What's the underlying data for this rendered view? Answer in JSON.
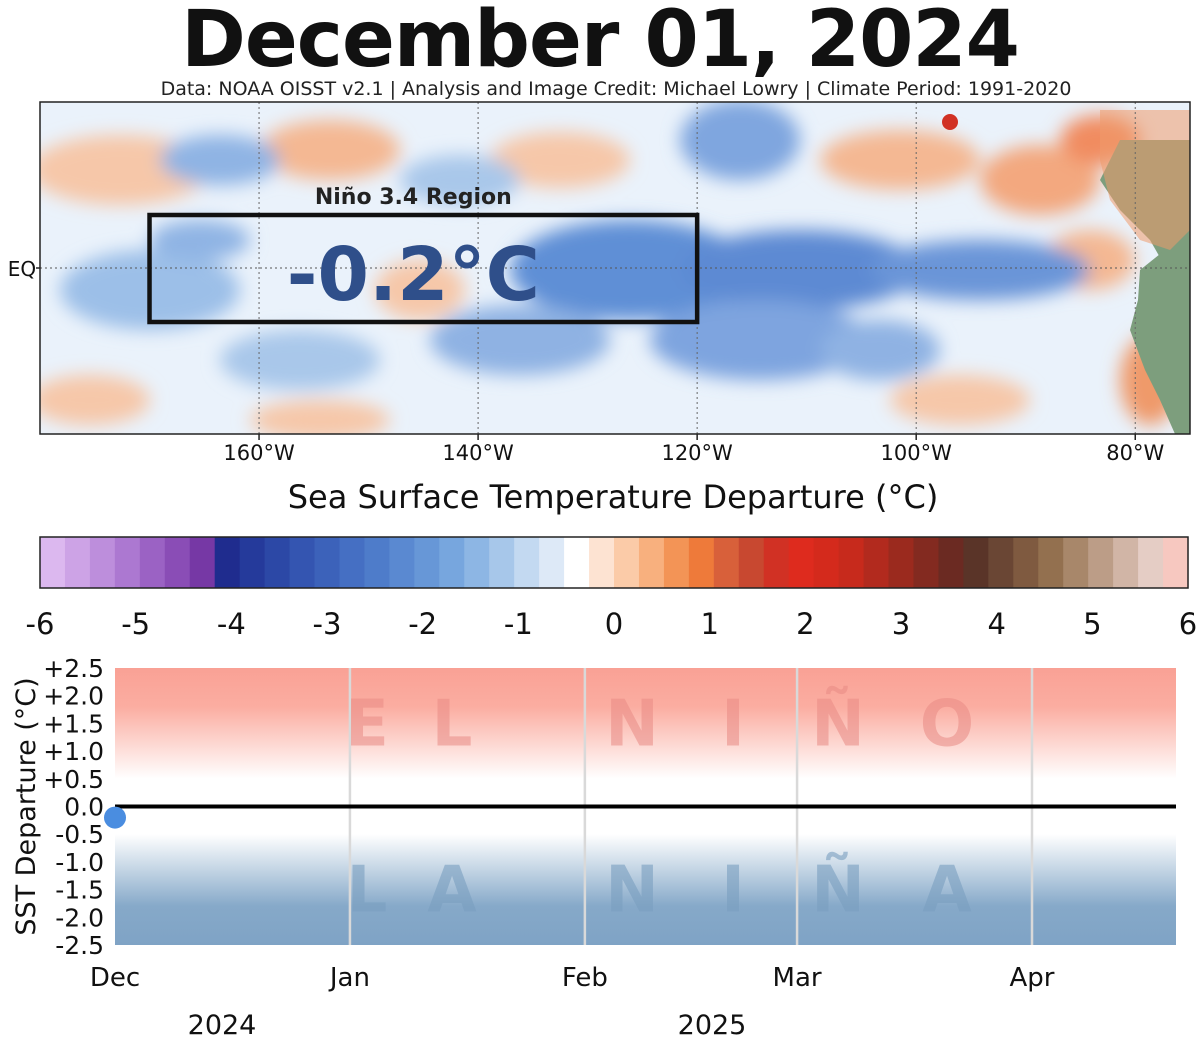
{
  "title": "December 01, 2024",
  "credit": "Data: NOAA OISST v2.1 | Analysis and Image Credit: Michael Lowry | Climate Period: 1991-2020",
  "map": {
    "equator_label": "EQ",
    "lon_labels": [
      "160°W",
      "140°W",
      "120°W",
      "100°W",
      "80°W"
    ],
    "lon_values": [
      -160,
      -140,
      -120,
      -100,
      -80
    ],
    "lon_range": [
      -180,
      -75
    ],
    "region_label": "Niño 3.4 Region",
    "region_value": "-0.2°C",
    "region_lon": [
      -170,
      -120
    ],
    "colors": {
      "land": "#7d9e7d",
      "cool": "#3f6fc6",
      "warm": "#e8885a"
    }
  },
  "colorbar": {
    "title": "Sea Surface Temperature Departure (°C)",
    "tick_labels": [
      "-6",
      "-5",
      "-4",
      "-3",
      "-2",
      "-1",
      "0",
      "1",
      "2",
      "3",
      "4",
      "5",
      "6"
    ],
    "colors": [
      "#dcb8ef",
      "#cda3e6",
      "#bd8edc",
      "#ac78d1",
      "#9b62c4",
      "#8a4db6",
      "#7638a5",
      "#1f2c8e",
      "#253a9b",
      "#2c48a6",
      "#3455b1",
      "#3c62ba",
      "#456fc3",
      "#4e7cca",
      "#5a89d1",
      "#6797d7",
      "#77a6de",
      "#8db6e4",
      "#a7c7ea",
      "#c3d9f1",
      "#dde9f7",
      "#ffffff",
      "#fde3d2",
      "#fbcba8",
      "#f8b07e",
      "#f39456",
      "#ee7a3a",
      "#d8603a",
      "#c84830",
      "#d13124",
      "#de2b1e",
      "#d42a1c",
      "#c72a1c",
      "#b22a1e",
      "#9b2a1e",
      "#832a20",
      "#6b2a22",
      "#5a3428",
      "#6a4634",
      "#7f5a40",
      "#93704f",
      "#a8876a",
      "#bc9d87",
      "#d1b5a6",
      "#e5cdc5",
      "#f7c8c0"
    ]
  },
  "chart_data": {
    "type": "scatter",
    "ylabel": "SST Departure (°C)",
    "ytick_labels": [
      "+2.5",
      "+2.0",
      "+1.5",
      "+1.0",
      "+0.5",
      "0.0",
      "-0.5",
      "-1.0",
      "-1.5",
      "-2.0",
      "-2.5"
    ],
    "ylim": [
      -2.5,
      2.5
    ],
    "x_labels": [
      "Dec",
      "Jan",
      "Feb",
      "Mar",
      "Apr"
    ],
    "year_labels": [
      "2024",
      "2025"
    ],
    "zones": [
      {
        "label": "EL NIÑO",
        "letters": [
          "E",
          "L",
          "N",
          "I",
          "Ñ",
          "O"
        ],
        "from": 0.5,
        "to": 2.5,
        "color": "#f9a195"
      },
      {
        "label": "LA NIÑA",
        "letters": [
          "L",
          "A",
          "N",
          "I",
          "Ñ",
          "A"
        ],
        "from": -2.5,
        "to": -0.5,
        "color": "#86a9c9"
      }
    ],
    "points": [
      {
        "x": "2024-12-01",
        "y": -0.2
      }
    ],
    "point_color": "#4a8de0",
    "grid": true
  }
}
